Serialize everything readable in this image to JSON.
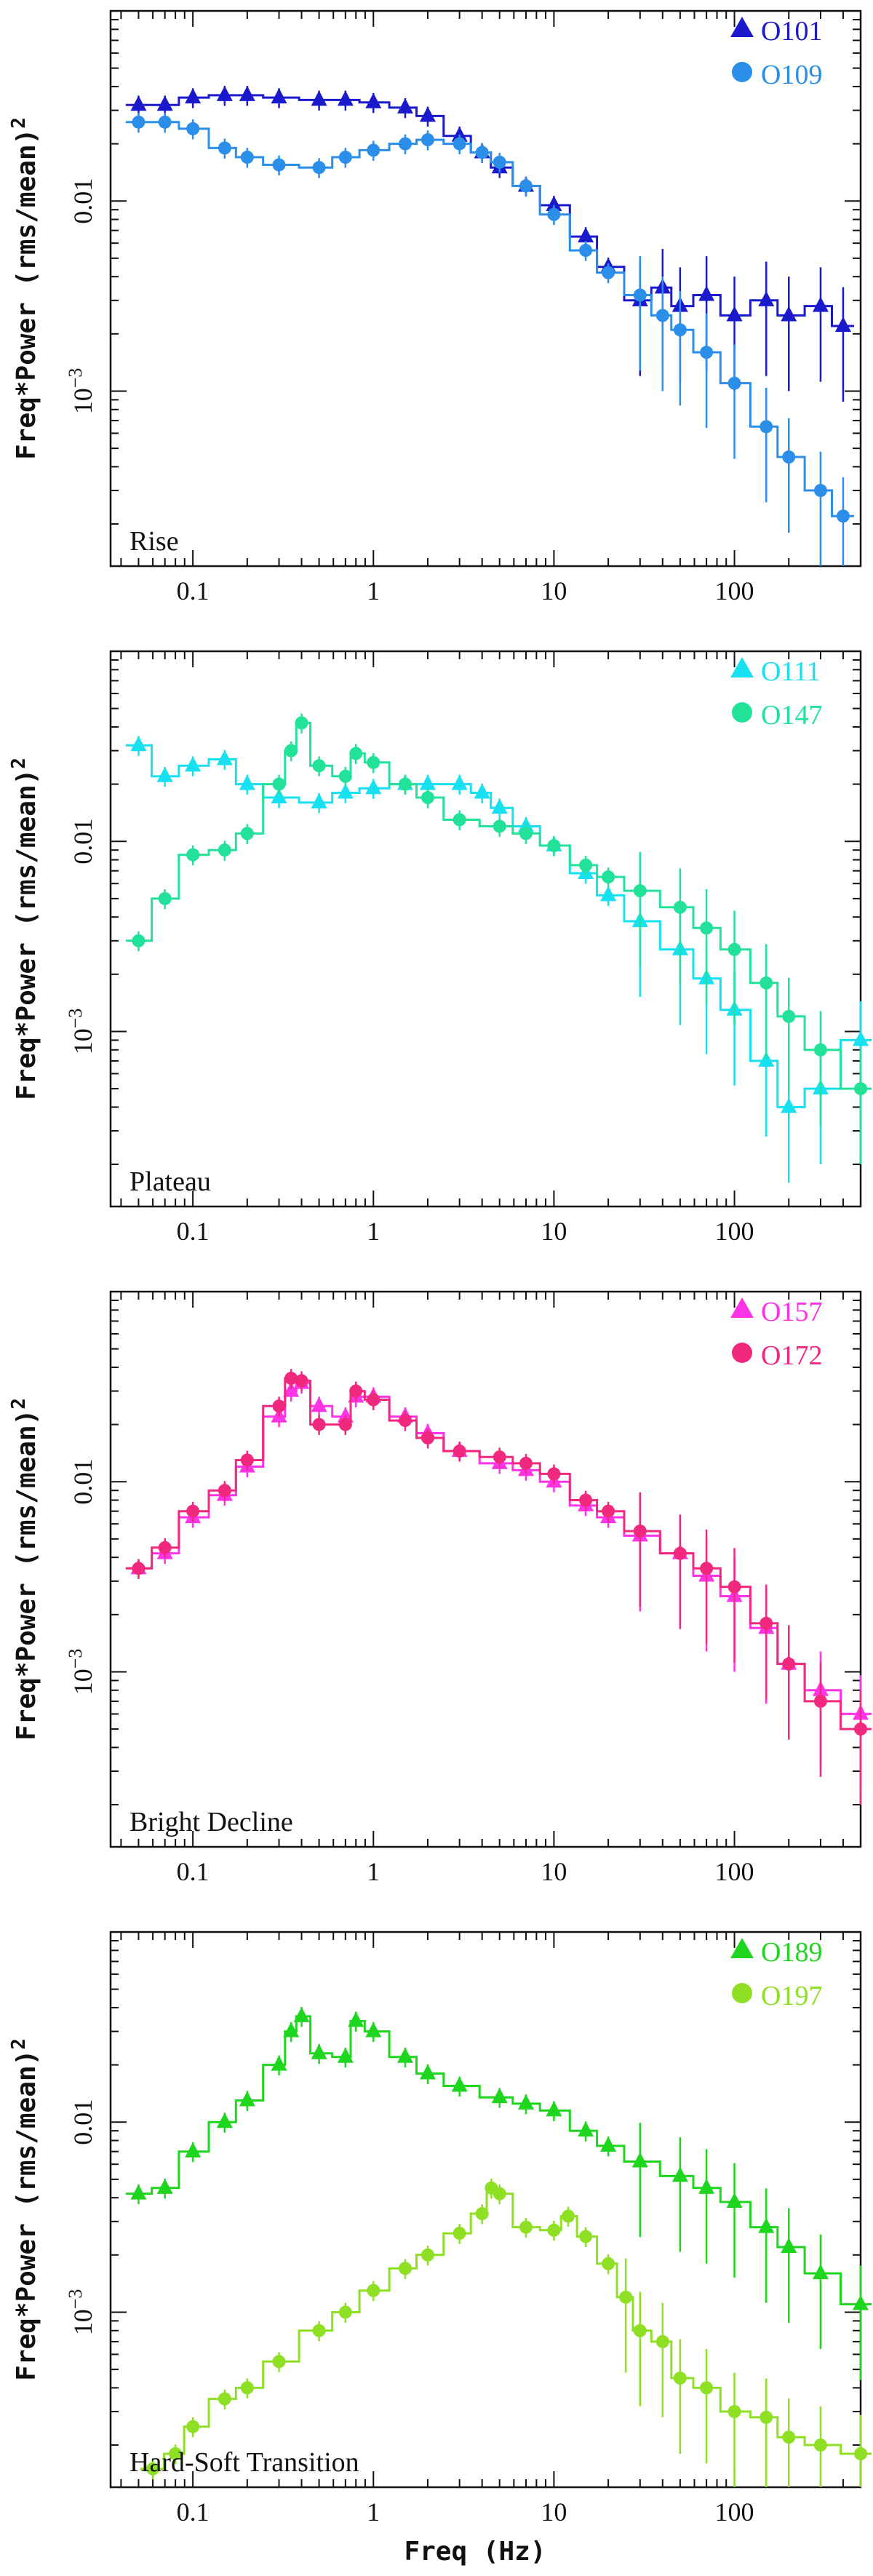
{
  "figure": {
    "xlabel": "Freq (Hz)",
    "ylabel": "Freq*Power (rms/mean)",
    "ylabel_sup": "2"
  },
  "chart_data": [
    {
      "type": "line",
      "title": "Rise",
      "xscale": "log",
      "yscale": "log",
      "xlim": [
        0.035,
        500
      ],
      "ylim": [
        0.00012,
        0.1
      ],
      "xticks": [
        {
          "v": 0.1,
          "label": "0.1"
        },
        {
          "v": 1,
          "label": "1"
        },
        {
          "v": 10,
          "label": "10"
        },
        {
          "v": 100,
          "label": "100"
        }
      ],
      "yticks": [
        {
          "v": 0.01,
          "label": "0.01"
        },
        {
          "v": 0.001,
          "label": "10",
          "sup": "−3"
        }
      ],
      "legend_position": "top-right",
      "series": [
        {
          "name": "O101",
          "marker": "triangle",
          "color": "#1a1acc",
          "x": [
            0.05,
            0.07,
            0.1,
            0.15,
            0.2,
            0.3,
            0.5,
            0.7,
            1.0,
            1.5,
            2.0,
            3.0,
            4.0,
            5.0,
            7.0,
            10,
            15,
            20,
            30,
            40,
            50,
            70,
            100,
            150,
            200,
            300,
            400
          ],
          "y": [
            0.032,
            0.032,
            0.035,
            0.036,
            0.036,
            0.035,
            0.034,
            0.034,
            0.033,
            0.031,
            0.028,
            0.022,
            0.018,
            0.015,
            0.012,
            0.0095,
            0.0065,
            0.0045,
            0.003,
            0.0035,
            0.0028,
            0.0032,
            0.0025,
            0.003,
            0.0025,
            0.0028,
            0.0022
          ]
        },
        {
          "name": "O109",
          "marker": "circle",
          "color": "#2b8ee8",
          "x": [
            0.05,
            0.07,
            0.1,
            0.15,
            0.2,
            0.3,
            0.5,
            0.7,
            1.0,
            1.5,
            2.0,
            3.0,
            4.0,
            5.0,
            7.0,
            10,
            15,
            20,
            30,
            40,
            50,
            70,
            100,
            150,
            200,
            300,
            400
          ],
          "y": [
            0.026,
            0.026,
            0.024,
            0.019,
            0.017,
            0.0155,
            0.015,
            0.017,
            0.0185,
            0.02,
            0.021,
            0.02,
            0.018,
            0.016,
            0.012,
            0.0085,
            0.0055,
            0.0042,
            0.0032,
            0.0025,
            0.0021,
            0.0016,
            0.0011,
            0.00065,
            0.00045,
            0.0003,
            0.00022
          ]
        }
      ]
    },
    {
      "type": "line",
      "title": "Plateau",
      "xscale": "log",
      "yscale": "log",
      "xlim": [
        0.035,
        500
      ],
      "ylim": [
        0.00012,
        0.1
      ],
      "xticks": [
        {
          "v": 0.1,
          "label": "0.1"
        },
        {
          "v": 1,
          "label": "1"
        },
        {
          "v": 10,
          "label": "10"
        },
        {
          "v": 100,
          "label": "100"
        }
      ],
      "yticks": [
        {
          "v": 0.01,
          "label": "0.01"
        },
        {
          "v": 0.001,
          "label": "10",
          "sup": "−3"
        }
      ],
      "legend_position": "top-right",
      "series": [
        {
          "name": "O111",
          "marker": "triangle",
          "color": "#17e0f0",
          "x": [
            0.05,
            0.07,
            0.1,
            0.15,
            0.2,
            0.3,
            0.5,
            0.7,
            1.0,
            1.5,
            2.0,
            3.0,
            4.0,
            5.0,
            7.0,
            10,
            15,
            20,
            30,
            50,
            70,
            100,
            150,
            200,
            300,
            500
          ],
          "y": [
            0.032,
            0.022,
            0.025,
            0.027,
            0.02,
            0.017,
            0.016,
            0.018,
            0.019,
            0.02,
            0.02,
            0.02,
            0.018,
            0.015,
            0.012,
            0.0095,
            0.0068,
            0.0052,
            0.0038,
            0.0027,
            0.0019,
            0.0013,
            0.0007,
            0.0004,
            0.0005,
            0.0009
          ]
        },
        {
          "name": "O147",
          "marker": "circle",
          "color": "#22e29a",
          "x": [
            0.05,
            0.07,
            0.1,
            0.15,
            0.2,
            0.3,
            0.35,
            0.4,
            0.5,
            0.7,
            0.8,
            1.0,
            1.5,
            2.0,
            3.0,
            5.0,
            7.0,
            10,
            15,
            20,
            30,
            50,
            70,
            100,
            150,
            200,
            300,
            500
          ],
          "y": [
            0.003,
            0.005,
            0.0085,
            0.009,
            0.011,
            0.02,
            0.03,
            0.042,
            0.025,
            0.022,
            0.029,
            0.026,
            0.02,
            0.017,
            0.013,
            0.012,
            0.011,
            0.0095,
            0.0075,
            0.0065,
            0.0055,
            0.0045,
            0.0035,
            0.0027,
            0.0018,
            0.0012,
            0.0008,
            0.0005
          ]
        }
      ]
    },
    {
      "type": "line",
      "title": "Bright Decline",
      "xscale": "log",
      "yscale": "log",
      "xlim": [
        0.035,
        500
      ],
      "ylim": [
        0.00012,
        0.1
      ],
      "xticks": [
        {
          "v": 0.1,
          "label": "0.1"
        },
        {
          "v": 1,
          "label": "1"
        },
        {
          "v": 10,
          "label": "10"
        },
        {
          "v": 100,
          "label": "100"
        }
      ],
      "yticks": [
        {
          "v": 0.01,
          "label": "0.01"
        },
        {
          "v": 0.001,
          "label": "10",
          "sup": "−3"
        }
      ],
      "legend_position": "top-right",
      "series": [
        {
          "name": "O157",
          "marker": "triangle",
          "color": "#ff33e6",
          "x": [
            0.05,
            0.07,
            0.1,
            0.15,
            0.2,
            0.3,
            0.35,
            0.4,
            0.5,
            0.7,
            0.8,
            1.0,
            1.5,
            2.0,
            3.0,
            5.0,
            7.0,
            10,
            15,
            20,
            30,
            50,
            70,
            100,
            150,
            200,
            300,
            500
          ],
          "y": [
            0.0035,
            0.0042,
            0.0065,
            0.0085,
            0.012,
            0.022,
            0.03,
            0.033,
            0.025,
            0.022,
            0.028,
            0.028,
            0.022,
            0.018,
            0.0145,
            0.0125,
            0.0115,
            0.01,
            0.0075,
            0.0065,
            0.0052,
            0.0042,
            0.0032,
            0.0025,
            0.0017,
            0.0011,
            0.0008,
            0.0006
          ]
        },
        {
          "name": "O172",
          "marker": "circle",
          "color": "#f0297f",
          "x": [
            0.05,
            0.07,
            0.1,
            0.15,
            0.2,
            0.3,
            0.35,
            0.4,
            0.5,
            0.7,
            0.8,
            1.0,
            1.5,
            2.0,
            3.0,
            5.0,
            7.0,
            10,
            15,
            20,
            30,
            50,
            70,
            100,
            150,
            200,
            300,
            500
          ],
          "y": [
            0.0035,
            0.0045,
            0.007,
            0.009,
            0.013,
            0.025,
            0.035,
            0.034,
            0.02,
            0.02,
            0.03,
            0.027,
            0.021,
            0.017,
            0.0145,
            0.0135,
            0.0125,
            0.011,
            0.008,
            0.007,
            0.0055,
            0.0042,
            0.0035,
            0.0028,
            0.0018,
            0.0011,
            0.0007,
            0.0005
          ]
        }
      ]
    },
    {
      "type": "line",
      "title": "Hard-Soft Transition",
      "xscale": "log",
      "yscale": "log",
      "xlim": [
        0.035,
        500
      ],
      "ylim": [
        0.00012,
        0.1
      ],
      "xticks": [
        {
          "v": 0.1,
          "label": "0.1"
        },
        {
          "v": 1,
          "label": "1"
        },
        {
          "v": 10,
          "label": "10"
        },
        {
          "v": 100,
          "label": "100"
        }
      ],
      "yticks": [
        {
          "v": 0.01,
          "label": "0.01"
        },
        {
          "v": 0.001,
          "label": "10",
          "sup": "−3"
        }
      ],
      "legend_position": "top-right",
      "series": [
        {
          "name": "O189",
          "marker": "triangle",
          "color": "#1ed61e",
          "x": [
            0.05,
            0.07,
            0.1,
            0.15,
            0.2,
            0.3,
            0.35,
            0.4,
            0.5,
            0.7,
            0.8,
            1.0,
            1.5,
            2.0,
            3.0,
            5.0,
            7.0,
            10,
            15,
            20,
            30,
            50,
            70,
            100,
            150,
            200,
            300,
            500
          ],
          "y": [
            0.0042,
            0.0045,
            0.007,
            0.01,
            0.013,
            0.02,
            0.03,
            0.036,
            0.023,
            0.022,
            0.034,
            0.03,
            0.022,
            0.018,
            0.0155,
            0.0135,
            0.0125,
            0.0115,
            0.009,
            0.0075,
            0.0062,
            0.0052,
            0.0045,
            0.0038,
            0.0028,
            0.0022,
            0.0016,
            0.0011
          ]
        },
        {
          "name": "O197",
          "marker": "circle",
          "color": "#8fe025",
          "x": [
            0.06,
            0.08,
            0.1,
            0.15,
            0.2,
            0.3,
            0.5,
            0.7,
            1.0,
            1.5,
            2.0,
            3.0,
            4.0,
            4.5,
            5.0,
            7.0,
            10,
            12,
            15,
            20,
            25,
            30,
            40,
            50,
            70,
            100,
            150,
            200,
            300,
            500
          ],
          "y": [
            0.00015,
            0.00018,
            0.00025,
            0.00035,
            0.0004,
            0.00055,
            0.0008,
            0.001,
            0.0013,
            0.0017,
            0.002,
            0.0026,
            0.0033,
            0.0045,
            0.0042,
            0.0028,
            0.0027,
            0.0032,
            0.0025,
            0.0018,
            0.0012,
            0.0008,
            0.0007,
            0.00045,
            0.0004,
            0.0003,
            0.00028,
            0.00022,
            0.0002,
            0.00018
          ]
        }
      ]
    }
  ]
}
